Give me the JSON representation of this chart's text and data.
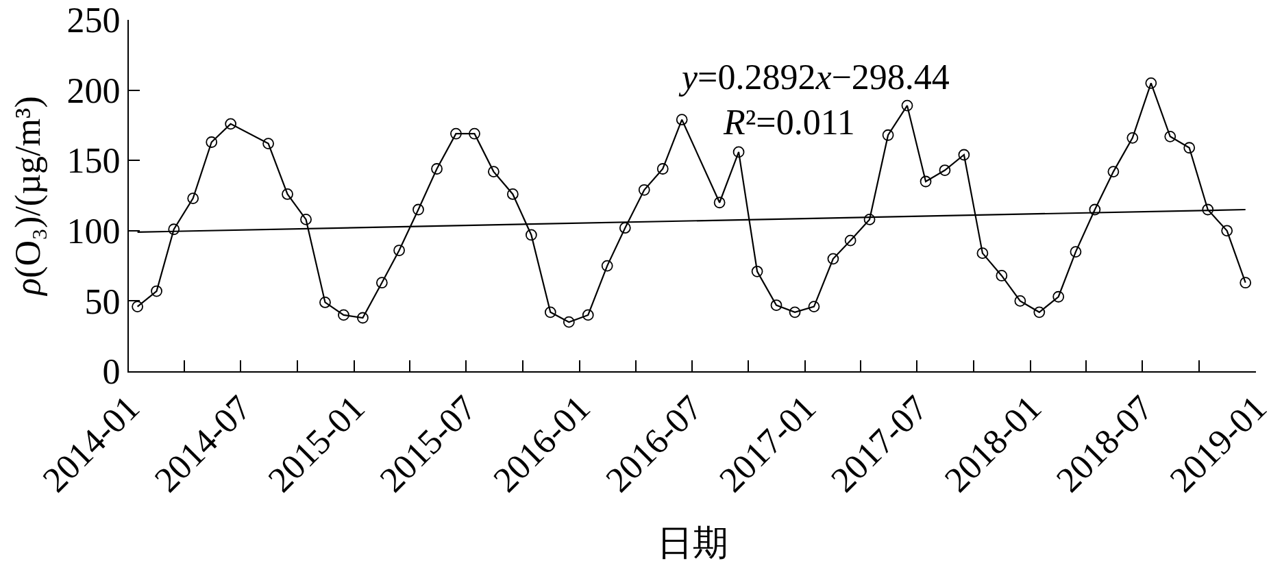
{
  "chart_data": {
    "type": "line",
    "xlabel": "日期",
    "ylabel": "ρ(O₃)/(µg/m³)",
    "annotations": [
      "y=0.2892x−298.44",
      "R²=0.011"
    ],
    "xlim": [
      "2014-01",
      "2019-01"
    ],
    "xticks": [
      "2014-01",
      {
        "value": "2014-04",
        "label": null
      },
      "2014-07",
      {
        "value": "2014-10",
        "label": null
      },
      "2015-01",
      {
        "value": "2015-04",
        "label": null
      },
      "2015-07",
      {
        "value": "2015-10",
        "label": null
      },
      "2016-01",
      {
        "value": "2016-04",
        "label": null
      },
      "2016-07",
      {
        "value": "2016-10",
        "label": null
      },
      "2017-01",
      {
        "value": "2017-04",
        "label": null
      },
      "2017-07",
      {
        "value": "2017-10",
        "label": null
      },
      "2018-01",
      {
        "value": "2018-04",
        "label": null
      },
      "2018-07",
      {
        "value": "2018-10",
        "label": null
      },
      "2019-01"
    ],
    "ylim": [
      0,
      250
    ],
    "yticks": [
      0,
      50,
      100,
      150,
      200,
      250
    ],
    "legend": false,
    "marker": "circle",
    "line_style": "solid",
    "series": [
      {
        "color": "#000000",
        "x": [
          "2014-01-15",
          "2014-02-15",
          "2014-03-15",
          "2014-04-15",
          "2014-05-15",
          "2014-06-15",
          "2014-08-15",
          "2014-09-15",
          "2014-10-15",
          "2014-11-15",
          "2014-12-15",
          "2015-01-15",
          "2015-02-15",
          "2015-03-15",
          "2015-04-15",
          "2015-05-15",
          "2015-06-15",
          "2015-07-15",
          "2015-08-15",
          "2015-09-15",
          "2015-10-15",
          "2015-11-15",
          "2015-12-15",
          "2016-01-15",
          "2016-02-15",
          "2016-03-15",
          "2016-04-15",
          "2016-05-15",
          "2016-06-15",
          "2016-08-15",
          "2016-09-15",
          "2016-10-15",
          "2016-11-15",
          "2016-12-15",
          "2017-01-15",
          "2017-02-15",
          "2017-03-15",
          "2017-04-15",
          "2017-05-15",
          "2017-06-15",
          "2017-07-15",
          "2017-08-15",
          "2017-09-15",
          "2017-10-15",
          "2017-11-15",
          "2017-12-15",
          "2018-01-15",
          "2018-02-15",
          "2018-03-15",
          "2018-04-15",
          "2018-05-15",
          "2018-06-15",
          "2018-07-15",
          "2018-08-15",
          "2018-09-15",
          "2018-10-15",
          "2018-11-15",
          "2018-12-15"
        ],
        "values": [
          46,
          57,
          101,
          123,
          163,
          176,
          162,
          126,
          108,
          49,
          40,
          38,
          63,
          86,
          115,
          144,
          169,
          169,
          142,
          126,
          97,
          42,
          35,
          40,
          75,
          102,
          129,
          144,
          179,
          120,
          156,
          71,
          47,
          42,
          46,
          80,
          93,
          108,
          168,
          189,
          135,
          143,
          154,
          84,
          68,
          50,
          42,
          53,
          85,
          115,
          142,
          166,
          205,
          167,
          159,
          115,
          100,
          63
        ]
      },
      {
        "type": "line",
        "color": "#000000",
        "marker": "none",
        "x": [
          "2014-01-15",
          "2018-12-15"
        ],
        "values": [
          99,
          115
        ]
      }
    ]
  }
}
